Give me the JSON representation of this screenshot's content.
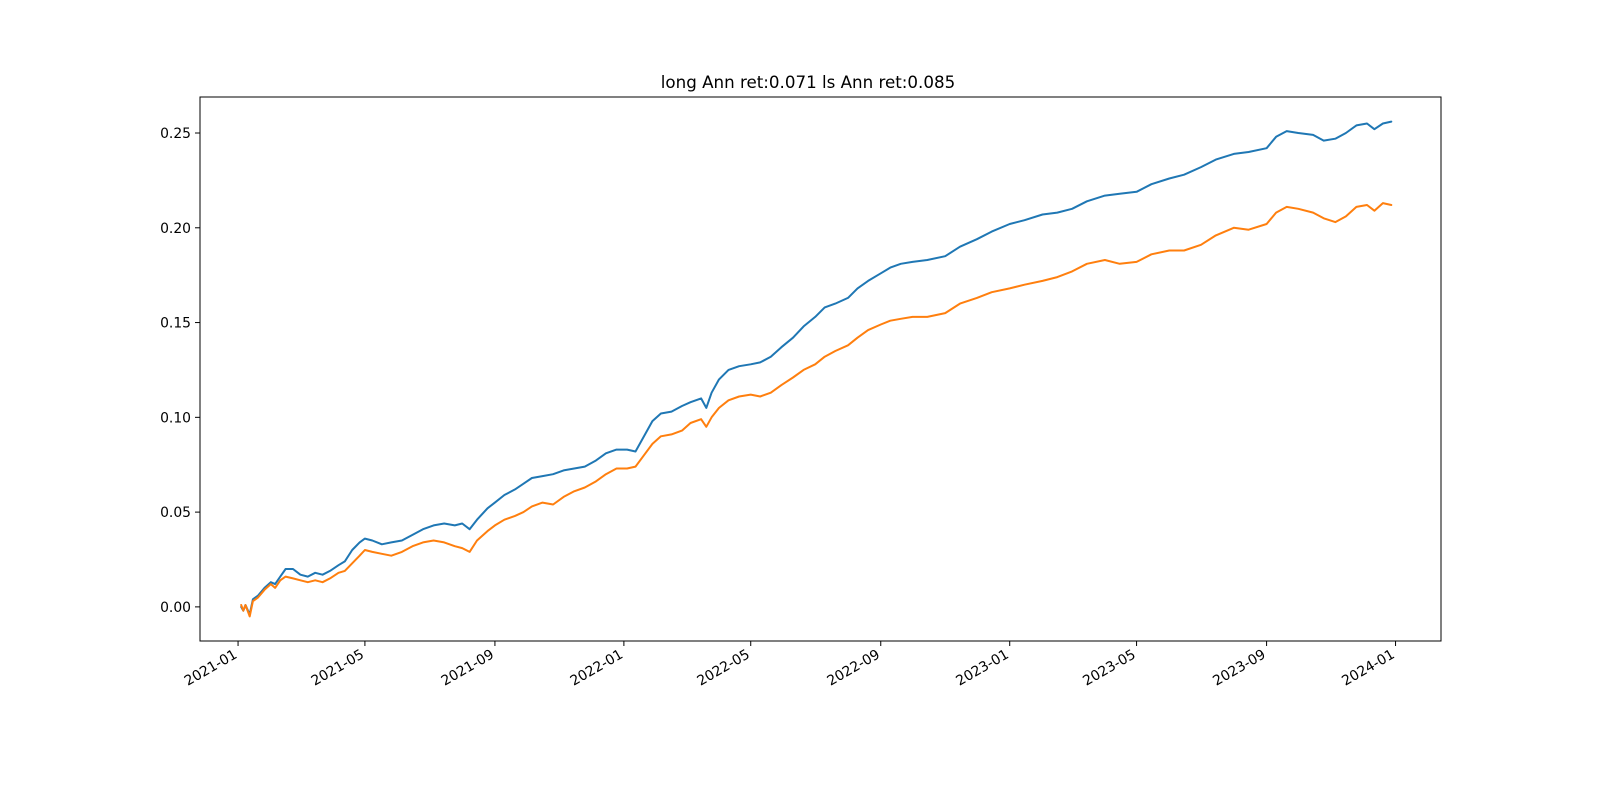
{
  "chart_data": {
    "type": "line",
    "title": "long Ann ret:0.071  ls Ann ret:0.085",
    "xlabel": "",
    "ylabel": "",
    "x_ticks": [
      "2021-01",
      "2021-05",
      "2021-09",
      "2022-01",
      "2022-05",
      "2022-09",
      "2023-01",
      "2023-05",
      "2023-09",
      "2024-01"
    ],
    "y_ticks": [
      "0.00",
      "0.05",
      "0.10",
      "0.15",
      "0.20",
      "0.25"
    ],
    "xlim": [
      "2020-11-26",
      "2024-02-13"
    ],
    "ylim": [
      -0.018,
      0.269
    ],
    "grid": false,
    "legend": null,
    "colors": [
      "#1f77b4",
      "#ff7f0e"
    ],
    "series": [
      {
        "color": "#1f77b4",
        "points": [
          [
            "2021-01-04",
            0.0
          ],
          [
            "2021-01-06",
            -0.002
          ],
          [
            "2021-01-08",
            0.001
          ],
          [
            "2021-01-12",
            -0.004
          ],
          [
            "2021-01-15",
            0.004
          ],
          [
            "2021-01-20",
            0.006
          ],
          [
            "2021-01-26",
            0.01
          ],
          [
            "2021-02-01",
            0.013
          ],
          [
            "2021-02-05",
            0.012
          ],
          [
            "2021-02-10",
            0.016
          ],
          [
            "2021-02-15",
            0.02
          ],
          [
            "2021-02-22",
            0.02
          ],
          [
            "2021-03-01",
            0.017
          ],
          [
            "2021-03-08",
            0.016
          ],
          [
            "2021-03-15",
            0.018
          ],
          [
            "2021-03-22",
            0.017
          ],
          [
            "2021-03-29",
            0.019
          ],
          [
            "2021-04-06",
            0.022
          ],
          [
            "2021-04-12",
            0.024
          ],
          [
            "2021-04-19",
            0.03
          ],
          [
            "2021-04-26",
            0.034
          ],
          [
            "2021-05-01",
            0.036
          ],
          [
            "2021-05-08",
            0.035
          ],
          [
            "2021-05-17",
            0.033
          ],
          [
            "2021-05-26",
            0.034
          ],
          [
            "2021-06-05",
            0.035
          ],
          [
            "2021-06-15",
            0.038
          ],
          [
            "2021-06-25",
            0.041
          ],
          [
            "2021-07-05",
            0.043
          ],
          [
            "2021-07-15",
            0.044
          ],
          [
            "2021-07-25",
            0.043
          ],
          [
            "2021-08-01",
            0.044
          ],
          [
            "2021-08-08",
            0.041
          ],
          [
            "2021-08-15",
            0.046
          ],
          [
            "2021-08-25",
            0.052
          ],
          [
            "2021-09-01",
            0.055
          ],
          [
            "2021-09-10",
            0.059
          ],
          [
            "2021-09-20",
            0.062
          ],
          [
            "2021-09-28",
            0.065
          ],
          [
            "2021-10-06",
            0.068
          ],
          [
            "2021-10-16",
            0.069
          ],
          [
            "2021-10-26",
            0.07
          ],
          [
            "2021-11-05",
            0.072
          ],
          [
            "2021-11-15",
            0.073
          ],
          [
            "2021-11-25",
            0.074
          ],
          [
            "2021-12-05",
            0.077
          ],
          [
            "2021-12-15",
            0.081
          ],
          [
            "2021-12-25",
            0.083
          ],
          [
            "2022-01-04",
            0.083
          ],
          [
            "2022-01-12",
            0.082
          ],
          [
            "2022-01-20",
            0.09
          ],
          [
            "2022-01-28",
            0.098
          ],
          [
            "2022-02-05",
            0.102
          ],
          [
            "2022-02-15",
            0.103
          ],
          [
            "2022-02-25",
            0.106
          ],
          [
            "2022-03-05",
            0.108
          ],
          [
            "2022-03-15",
            0.11
          ],
          [
            "2022-03-20",
            0.105
          ],
          [
            "2022-03-25",
            0.113
          ],
          [
            "2022-04-01",
            0.12
          ],
          [
            "2022-04-10",
            0.125
          ],
          [
            "2022-04-20",
            0.127
          ],
          [
            "2022-05-01",
            0.128
          ],
          [
            "2022-05-10",
            0.129
          ],
          [
            "2022-05-20",
            0.132
          ],
          [
            "2022-05-30",
            0.137
          ],
          [
            "2022-06-10",
            0.142
          ],
          [
            "2022-06-20",
            0.148
          ],
          [
            "2022-07-01",
            0.153
          ],
          [
            "2022-07-10",
            0.158
          ],
          [
            "2022-07-20",
            0.16
          ],
          [
            "2022-08-01",
            0.163
          ],
          [
            "2022-08-10",
            0.168
          ],
          [
            "2022-08-20",
            0.172
          ],
          [
            "2022-09-01",
            0.176
          ],
          [
            "2022-09-10",
            0.179
          ],
          [
            "2022-09-20",
            0.181
          ],
          [
            "2022-10-01",
            0.182
          ],
          [
            "2022-10-15",
            0.183
          ],
          [
            "2022-11-01",
            0.185
          ],
          [
            "2022-11-15",
            0.19
          ],
          [
            "2022-12-01",
            0.194
          ],
          [
            "2022-12-15",
            0.198
          ],
          [
            "2023-01-01",
            0.202
          ],
          [
            "2023-01-15",
            0.204
          ],
          [
            "2023-02-01",
            0.207
          ],
          [
            "2023-02-15",
            0.208
          ],
          [
            "2023-03-01",
            0.21
          ],
          [
            "2023-03-15",
            0.214
          ],
          [
            "2023-04-01",
            0.217
          ],
          [
            "2023-04-15",
            0.218
          ],
          [
            "2023-05-01",
            0.219
          ],
          [
            "2023-05-15",
            0.223
          ],
          [
            "2023-06-01",
            0.226
          ],
          [
            "2023-06-15",
            0.228
          ],
          [
            "2023-07-01",
            0.232
          ],
          [
            "2023-07-15",
            0.236
          ],
          [
            "2023-08-01",
            0.239
          ],
          [
            "2023-08-15",
            0.24
          ],
          [
            "2023-09-01",
            0.242
          ],
          [
            "2023-09-10",
            0.248
          ],
          [
            "2023-09-20",
            0.251
          ],
          [
            "2023-10-01",
            0.25
          ],
          [
            "2023-10-15",
            0.249
          ],
          [
            "2023-10-25",
            0.246
          ],
          [
            "2023-11-05",
            0.247
          ],
          [
            "2023-11-15",
            0.25
          ],
          [
            "2023-11-25",
            0.254
          ],
          [
            "2023-12-05",
            0.255
          ],
          [
            "2023-12-12",
            0.252
          ],
          [
            "2023-12-20",
            0.255
          ],
          [
            "2023-12-28",
            0.256
          ]
        ]
      },
      {
        "color": "#ff7f0e",
        "points": [
          [
            "2021-01-04",
            0.001
          ],
          [
            "2021-01-06",
            -0.002
          ],
          [
            "2021-01-08",
            0.001
          ],
          [
            "2021-01-12",
            -0.005
          ],
          [
            "2021-01-15",
            0.003
          ],
          [
            "2021-01-20",
            0.005
          ],
          [
            "2021-01-26",
            0.009
          ],
          [
            "2021-02-01",
            0.012
          ],
          [
            "2021-02-05",
            0.01
          ],
          [
            "2021-02-10",
            0.014
          ],
          [
            "2021-02-15",
            0.016
          ],
          [
            "2021-02-22",
            0.015
          ],
          [
            "2021-03-01",
            0.014
          ],
          [
            "2021-03-08",
            0.013
          ],
          [
            "2021-03-15",
            0.014
          ],
          [
            "2021-03-22",
            0.013
          ],
          [
            "2021-03-29",
            0.015
          ],
          [
            "2021-04-06",
            0.018
          ],
          [
            "2021-04-12",
            0.019
          ],
          [
            "2021-04-19",
            0.023
          ],
          [
            "2021-04-26",
            0.027
          ],
          [
            "2021-05-01",
            0.03
          ],
          [
            "2021-05-08",
            0.029
          ],
          [
            "2021-05-17",
            0.028
          ],
          [
            "2021-05-26",
            0.027
          ],
          [
            "2021-06-05",
            0.029
          ],
          [
            "2021-06-15",
            0.032
          ],
          [
            "2021-06-25",
            0.034
          ],
          [
            "2021-07-05",
            0.035
          ],
          [
            "2021-07-15",
            0.034
          ],
          [
            "2021-07-25",
            0.032
          ],
          [
            "2021-08-01",
            0.031
          ],
          [
            "2021-08-08",
            0.029
          ],
          [
            "2021-08-15",
            0.035
          ],
          [
            "2021-08-25",
            0.04
          ],
          [
            "2021-09-01",
            0.043
          ],
          [
            "2021-09-10",
            0.046
          ],
          [
            "2021-09-20",
            0.048
          ],
          [
            "2021-09-28",
            0.05
          ],
          [
            "2021-10-06",
            0.053
          ],
          [
            "2021-10-16",
            0.055
          ],
          [
            "2021-10-26",
            0.054
          ],
          [
            "2021-11-05",
            0.058
          ],
          [
            "2021-11-15",
            0.061
          ],
          [
            "2021-11-25",
            0.063
          ],
          [
            "2021-12-05",
            0.066
          ],
          [
            "2021-12-15",
            0.07
          ],
          [
            "2021-12-25",
            0.073
          ],
          [
            "2022-01-04",
            0.073
          ],
          [
            "2022-01-12",
            0.074
          ],
          [
            "2022-01-20",
            0.08
          ],
          [
            "2022-01-28",
            0.086
          ],
          [
            "2022-02-05",
            0.09
          ],
          [
            "2022-02-15",
            0.091
          ],
          [
            "2022-02-25",
            0.093
          ],
          [
            "2022-03-05",
            0.097
          ],
          [
            "2022-03-15",
            0.099
          ],
          [
            "2022-03-20",
            0.095
          ],
          [
            "2022-03-25",
            0.1
          ],
          [
            "2022-04-01",
            0.105
          ],
          [
            "2022-04-10",
            0.109
          ],
          [
            "2022-04-20",
            0.111
          ],
          [
            "2022-05-01",
            0.112
          ],
          [
            "2022-05-10",
            0.111
          ],
          [
            "2022-05-20",
            0.113
          ],
          [
            "2022-05-30",
            0.117
          ],
          [
            "2022-06-10",
            0.121
          ],
          [
            "2022-06-20",
            0.125
          ],
          [
            "2022-07-01",
            0.128
          ],
          [
            "2022-07-10",
            0.132
          ],
          [
            "2022-07-20",
            0.135
          ],
          [
            "2022-08-01",
            0.138
          ],
          [
            "2022-08-10",
            0.142
          ],
          [
            "2022-08-20",
            0.146
          ],
          [
            "2022-09-01",
            0.149
          ],
          [
            "2022-09-10",
            0.151
          ],
          [
            "2022-09-20",
            0.152
          ],
          [
            "2022-10-01",
            0.153
          ],
          [
            "2022-10-15",
            0.153
          ],
          [
            "2022-11-01",
            0.155
          ],
          [
            "2022-11-15",
            0.16
          ],
          [
            "2022-12-01",
            0.163
          ],
          [
            "2022-12-15",
            0.166
          ],
          [
            "2023-01-01",
            0.168
          ],
          [
            "2023-01-15",
            0.17
          ],
          [
            "2023-02-01",
            0.172
          ],
          [
            "2023-02-15",
            0.174
          ],
          [
            "2023-03-01",
            0.177
          ],
          [
            "2023-03-15",
            0.181
          ],
          [
            "2023-04-01",
            0.183
          ],
          [
            "2023-04-15",
            0.181
          ],
          [
            "2023-05-01",
            0.182
          ],
          [
            "2023-05-15",
            0.186
          ],
          [
            "2023-06-01",
            0.188
          ],
          [
            "2023-06-15",
            0.188
          ],
          [
            "2023-07-01",
            0.191
          ],
          [
            "2023-07-15",
            0.196
          ],
          [
            "2023-08-01",
            0.2
          ],
          [
            "2023-08-15",
            0.199
          ],
          [
            "2023-09-01",
            0.202
          ],
          [
            "2023-09-10",
            0.208
          ],
          [
            "2023-09-20",
            0.211
          ],
          [
            "2023-10-01",
            0.21
          ],
          [
            "2023-10-15",
            0.208
          ],
          [
            "2023-10-25",
            0.205
          ],
          [
            "2023-11-05",
            0.203
          ],
          [
            "2023-11-15",
            0.206
          ],
          [
            "2023-11-25",
            0.211
          ],
          [
            "2023-12-05",
            0.212
          ],
          [
            "2023-12-12",
            0.209
          ],
          [
            "2023-12-20",
            0.213
          ],
          [
            "2023-12-28",
            0.212
          ]
        ]
      }
    ]
  }
}
